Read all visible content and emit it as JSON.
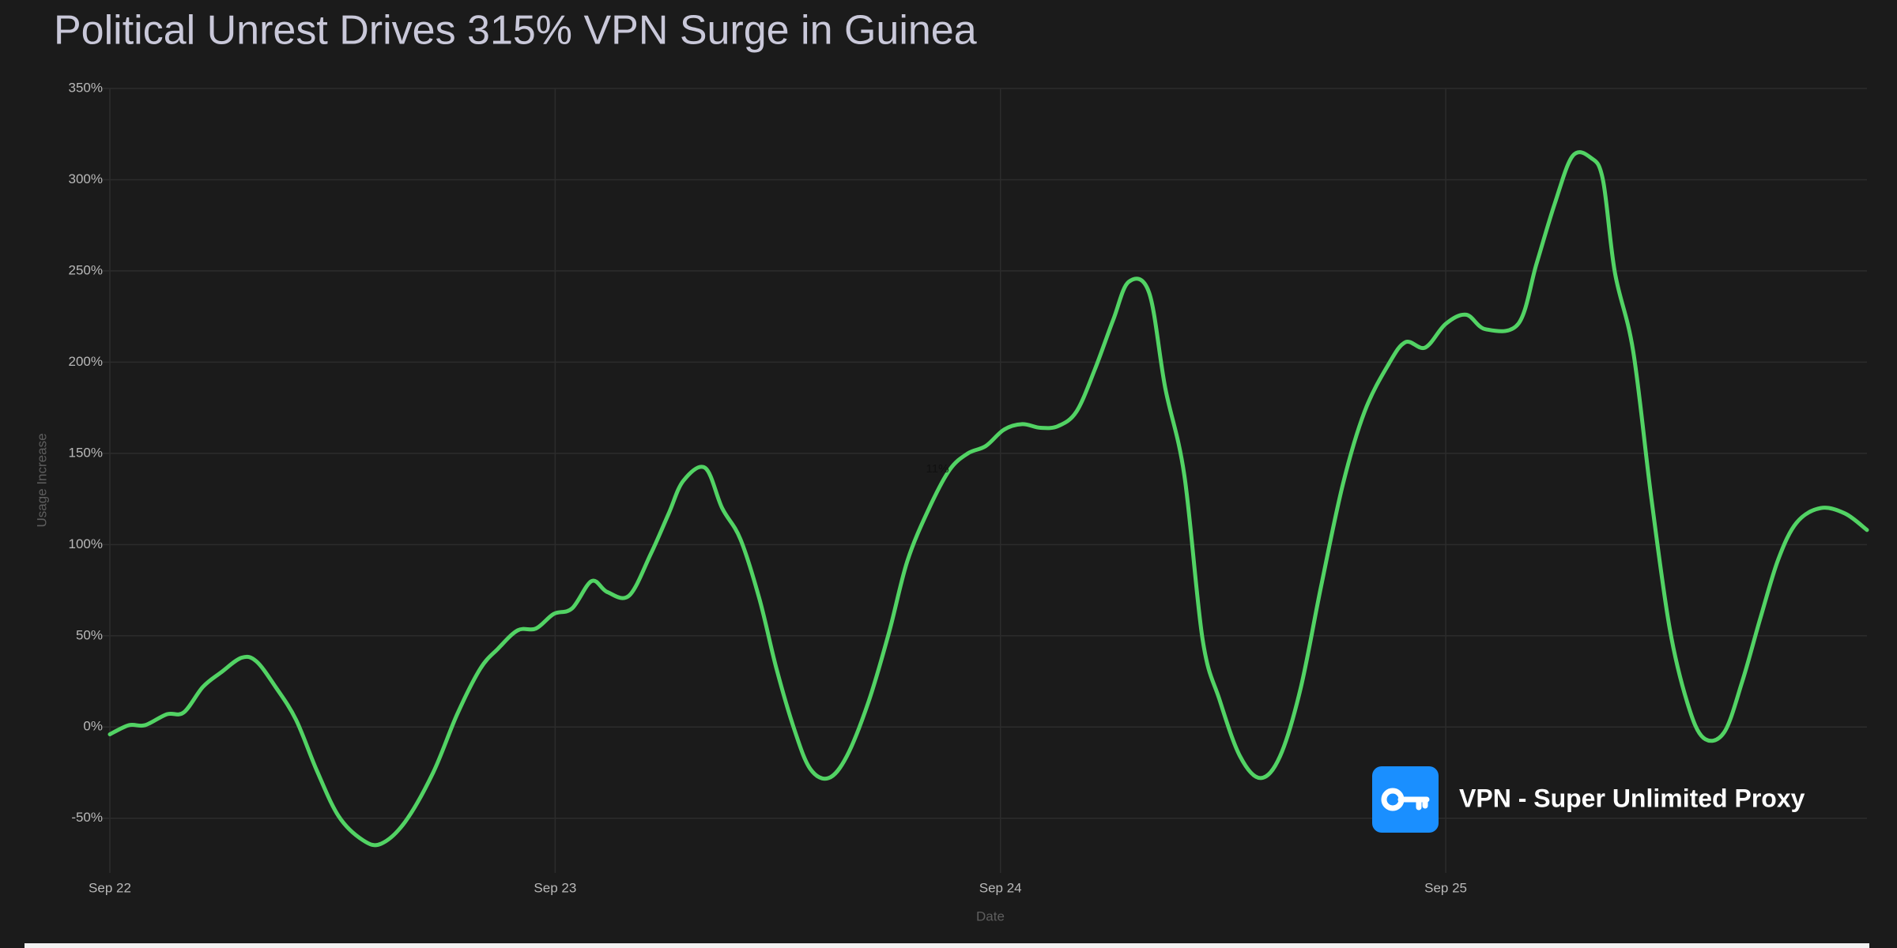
{
  "chart_data": {
    "type": "line",
    "title": "Political Unrest Drives 315% VPN Surge in Guinea",
    "x_label": "Date",
    "y_label": "Usage Increase",
    "annotation": "11%",
    "watermark": "VPN - Super Unlimited Proxy",
    "color": "#52d364",
    "grid": true,
    "xlim": [
      0,
      3.946
    ],
    "ylim": [
      -80,
      350
    ],
    "xticks": [
      {
        "value": 0,
        "label": "Sep 22"
      },
      {
        "value": 1,
        "label": "Sep 23"
      },
      {
        "value": 2,
        "label": "Sep 24"
      },
      {
        "value": 3,
        "label": "Sep 25"
      }
    ],
    "yticks": [
      {
        "value": -50,
        "label": "-50%"
      },
      {
        "value": 0,
        "label": "0%"
      },
      {
        "value": 50,
        "label": "50%"
      },
      {
        "value": 100,
        "label": "100%"
      },
      {
        "value": 150,
        "label": "150%"
      },
      {
        "value": 200,
        "label": "200%"
      },
      {
        "value": 250,
        "label": "250%"
      },
      {
        "value": 300,
        "label": "300%"
      },
      {
        "value": 350,
        "label": "350%"
      }
    ],
    "x": [
      0,
      0.043,
      0.079,
      0.128,
      0.166,
      0.209,
      0.25,
      0.296,
      0.329,
      0.372,
      0.418,
      0.465,
      0.514,
      0.568,
      0.609,
      0.663,
      0.726,
      0.78,
      0.832,
      0.872,
      0.916,
      0.957,
      0.997,
      1.038,
      1.082,
      1.117,
      1.166,
      1.215,
      1.255,
      1.288,
      1.337,
      1.375,
      1.416,
      1.459,
      1.497,
      1.538,
      1.573,
      1.614,
      1.655,
      1.704,
      1.75,
      1.791,
      1.84,
      1.886,
      1.927,
      1.967,
      2.008,
      2.049,
      2.09,
      2.13,
      2.171,
      2.212,
      2.253,
      2.288,
      2.334,
      2.37,
      2.413,
      2.454,
      2.492,
      2.538,
      2.584,
      2.628,
      2.674,
      2.72,
      2.769,
      2.818,
      2.872,
      2.91,
      2.954,
      3.0,
      3.046,
      3.09,
      3.163,
      3.204,
      3.245,
      3.285,
      3.326,
      3.353,
      3.38,
      3.421,
      3.462,
      3.503,
      3.543,
      3.579,
      3.625,
      3.666,
      3.707,
      3.747,
      3.788,
      3.842,
      3.897,
      3.946
    ],
    "values": [
      -4,
      1,
      1,
      7,
      8,
      22,
      30,
      38,
      36,
      22,
      4,
      -24,
      -49,
      -62,
      -64,
      -52,
      -25,
      7,
      32,
      43,
      53,
      54,
      62,
      65,
      80,
      74,
      72,
      95,
      117,
      135,
      142,
      120,
      103,
      70,
      32,
      -2,
      -23,
      -28,
      -16,
      14,
      52,
      91,
      120,
      141,
      150,
      154,
      163,
      166,
      164,
      165,
      173,
      196,
      223,
      244,
      238,
      186,
      138,
      48,
      15,
      -16,
      -28,
      -16,
      21,
      77,
      133,
      173,
      199,
      211,
      208,
      221,
      226,
      218,
      221,
      254,
      287,
      313,
      312,
      300,
      249,
      206,
      125,
      54,
      13,
      -6,
      -3,
      25,
      60,
      92,
      112,
      120,
      117,
      108
    ]
  }
}
